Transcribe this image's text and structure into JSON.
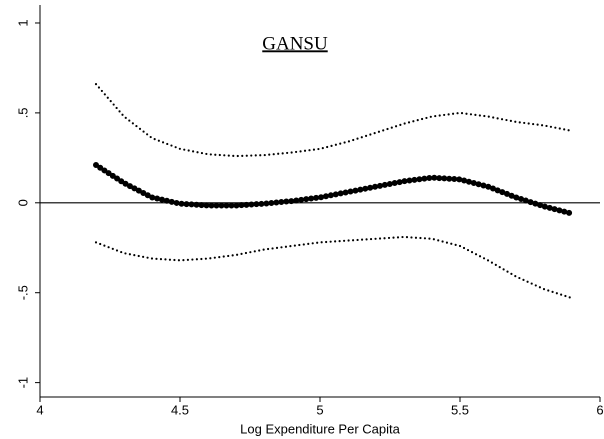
{
  "chart_data": {
    "type": "line",
    "title": "GANSU",
    "x_label": "Log Expenditure Per Capita",
    "x": [
      4.2,
      4.3,
      4.4,
      4.5,
      4.6,
      4.7,
      4.8,
      4.9,
      5.0,
      5.1,
      5.2,
      5.3,
      5.4,
      5.5,
      5.6,
      5.7,
      5.8,
      5.9
    ],
    "series": [
      {
        "color": "#000000",
        "style": "dots",
        "values": [
          0.21,
          0.11,
          0.03,
          -0.005,
          -0.015,
          -0.015,
          -0.005,
          0.01,
          0.03,
          0.06,
          0.09,
          0.12,
          0.14,
          0.13,
          0.09,
          0.03,
          -0.02,
          -0.06
        ]
      },
      {
        "color": "#000000",
        "style": "dotted",
        "values": [
          0.66,
          0.48,
          0.36,
          0.3,
          0.27,
          0.26,
          0.265,
          0.28,
          0.3,
          0.34,
          0.39,
          0.44,
          0.48,
          0.5,
          0.48,
          0.45,
          0.43,
          0.4
        ]
      },
      {
        "color": "#000000",
        "style": "dotted",
        "values": [
          -0.22,
          -0.28,
          -0.31,
          -0.32,
          -0.31,
          -0.29,
          -0.26,
          -0.24,
          -0.22,
          -0.21,
          -0.2,
          -0.19,
          -0.2,
          -0.24,
          -0.32,
          -0.41,
          -0.48,
          -0.53
        ]
      }
    ],
    "yline": 0,
    "xlim": [
      4,
      6
    ],
    "xticks": [
      4,
      4.5,
      5,
      5.5,
      6
    ],
    "ylim": [
      -1.08,
      1.1
    ],
    "yticks": [
      -1,
      {
        "value": -0.5,
        "label": "-.5"
      },
      0,
      {
        "value": 0.5,
        "label": ".5"
      },
      1
    ]
  }
}
